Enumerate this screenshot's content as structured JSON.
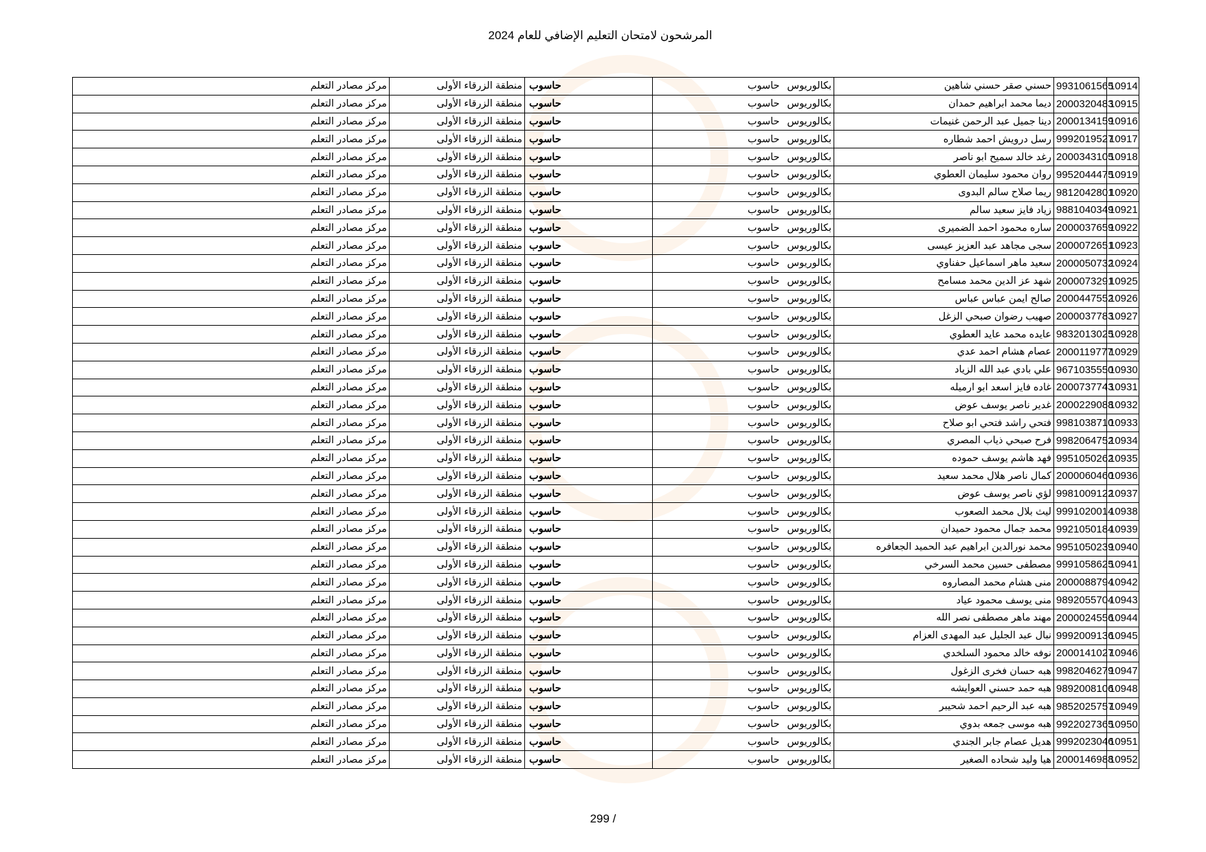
{
  "title": "المرشحون لامتحان التعليم الإضافي للعام 2024",
  "page_label": "299 /",
  "rows": [
    {
      "no": "10914",
      "id": "9931061565",
      "name": "حسني صقر حسني شاهين",
      "degree": "بكالوريوس",
      "spec": "حاسوب",
      "subject": "حاسوب",
      "region": "منطقة الزرقاء الأولى",
      "center": "مركز مصادر التعلم"
    },
    {
      "no": "10915",
      "id": "2000320483",
      "name": "ديما محمد ابراهيم حمدان",
      "degree": "بكالوريوس",
      "spec": "حاسوب",
      "subject": "حاسوب",
      "region": "منطقة الزرقاء الأولى",
      "center": "مركز مصادر التعلم"
    },
    {
      "no": "10916",
      "id": "2000134159",
      "name": "دينا جميل عبد الرحمن غنيمات",
      "degree": "بكالوريوس",
      "spec": "حاسوب",
      "subject": "حاسوب",
      "region": "منطقة الزرقاء الأولى",
      "center": "مركز مصادر التعلم"
    },
    {
      "no": "10917",
      "id": "9992019527",
      "name": "رسل درويش احمد شطاره",
      "degree": "بكالوريوس",
      "spec": "حاسوب",
      "subject": "حاسوب",
      "region": "منطقة الزرقاء الأولى",
      "center": "مركز مصادر التعلم"
    },
    {
      "no": "10918",
      "id": "2000343105",
      "name": "رغد خالد سميح ابو ناصر",
      "degree": "بكالوريوس",
      "spec": "حاسوب",
      "subject": "حاسوب",
      "region": "منطقة الزرقاء الأولى",
      "center": "مركز مصادر التعلم"
    },
    {
      "no": "10919",
      "id": "9952044475",
      "name": "روان محمود سليمان العطوي",
      "degree": "بكالوريوس",
      "spec": "حاسوب",
      "subject": "حاسوب",
      "region": "منطقة الزرقاء الأولى",
      "center": "مركز مصادر التعلم"
    },
    {
      "no": "10920",
      "id": "9812042801",
      "name": "ريما صلاح سالم البدوى",
      "degree": "بكالوريوس",
      "spec": "حاسوب",
      "subject": "حاسوب",
      "region": "منطقة الزرقاء الأولى",
      "center": "مركز مصادر التعلم"
    },
    {
      "no": "10921",
      "id": "9881040349",
      "name": "زياد فايز سعيد سالم",
      "degree": "بكالوريوس",
      "spec": "حاسوب",
      "subject": "حاسوب",
      "region": "منطقة الزرقاء الأولى",
      "center": "مركز مصادر التعلم"
    },
    {
      "no": "10922",
      "id": "2000037659",
      "name": "ساره محمود احمد الضميرى",
      "degree": "بكالوريوس",
      "spec": "حاسوب",
      "subject": "حاسوب",
      "region": "منطقة الزرقاء الأولى",
      "center": "مركز مصادر التعلم"
    },
    {
      "no": "10923",
      "id": "2000072651",
      "name": "سجى مجاهد عبد العزيز عيسى",
      "degree": "بكالوريوس",
      "spec": "حاسوب",
      "subject": "حاسوب",
      "region": "منطقة الزرقاء الأولى",
      "center": "مركز مصادر التعلم"
    },
    {
      "no": "10924",
      "id": "2000050732",
      "name": "سعيد ماهر اسماعيل حفناوي",
      "degree": "بكالوريوس",
      "spec": "حاسوب",
      "subject": "حاسوب",
      "region": "منطقة الزرقاء الأولى",
      "center": "مركز مصادر التعلم"
    },
    {
      "no": "10925",
      "id": "2000073291",
      "name": "شهد عز الدين محمد مسامح",
      "degree": "بكالوريوس",
      "spec": "حاسوب",
      "subject": "حاسوب",
      "region": "منطقة الزرقاء الأولى",
      "center": "مركز مصادر التعلم"
    },
    {
      "no": "10926",
      "id": "2000447552",
      "name": "صالح ايمن عباس عباس",
      "degree": "بكالوريوس",
      "spec": "حاسوب",
      "subject": "حاسوب",
      "region": "منطقة الزرقاء الأولى",
      "center": "مركز مصادر التعلم"
    },
    {
      "no": "10927",
      "id": "2000037783",
      "name": "صهيب رضوان صبحي الزغل",
      "degree": "بكالوريوس",
      "spec": "حاسوب",
      "subject": "حاسوب",
      "region": "منطقة الزرقاء الأولى",
      "center": "مركز مصادر التعلم"
    },
    {
      "no": "10928",
      "id": "9832013025",
      "name": "عايده محمد عايد العطوي",
      "degree": "بكالوريوس",
      "spec": "حاسوب",
      "subject": "حاسوب",
      "region": "منطقة الزرقاء الأولى",
      "center": "مركز مصادر التعلم"
    },
    {
      "no": "10929",
      "id": "2000119777",
      "name": "عصام هشام احمد عدي",
      "degree": "بكالوريوس",
      "spec": "حاسوب",
      "subject": "حاسوب",
      "region": "منطقة الزرقاء الأولى",
      "center": "مركز مصادر التعلم"
    },
    {
      "no": "10930",
      "id": "9671035550",
      "name": "علي بادي عبد الله الزياد",
      "degree": "بكالوريوس",
      "spec": "حاسوب",
      "subject": "حاسوب",
      "region": "منطقة الزرقاء الأولى",
      "center": "مركز مصادر التعلم"
    },
    {
      "no": "10931",
      "id": "2000737743",
      "name": "غاده فايز اسعد ابو ارميله",
      "degree": "بكالوريوس",
      "spec": "حاسوب",
      "subject": "حاسوب",
      "region": "منطقة الزرقاء الأولى",
      "center": "مركز مصادر التعلم"
    },
    {
      "no": "10932",
      "id": "2000229088",
      "name": "غدير ناصر يوسف عوض",
      "degree": "بكالوريوس",
      "spec": "حاسوب",
      "subject": "حاسوب",
      "region": "منطقة الزرقاء الأولى",
      "center": "مركز مصادر التعلم"
    },
    {
      "no": "10933",
      "id": "9981038710",
      "name": "فتحي راشد فتحي ابو صلاح",
      "degree": "بكالوريوس",
      "spec": "حاسوب",
      "subject": "حاسوب",
      "region": "منطقة الزرقاء الأولى",
      "center": "مركز مصادر التعلم"
    },
    {
      "no": "10934",
      "id": "9982064752",
      "name": "فرح صبحي ذياب المصري",
      "degree": "بكالوريوس",
      "spec": "حاسوب",
      "subject": "حاسوب",
      "region": "منطقة الزرقاء الأولى",
      "center": "مركز مصادر التعلم"
    },
    {
      "no": "10935",
      "id": "9951050262",
      "name": "فهد هاشم يوسف حموده",
      "degree": "بكالوريوس",
      "spec": "حاسوب",
      "subject": "حاسوب",
      "region": "منطقة الزرقاء الأولى",
      "center": "مركز مصادر التعلم"
    },
    {
      "no": "10936",
      "id": "2000060460",
      "name": "كمال ناصر هلال محمد سعيد",
      "degree": "بكالوريوس",
      "spec": "حاسوب",
      "subject": "حاسوب",
      "region": "منطقة الزرقاء الأولى",
      "center": "مركز مصادر التعلم"
    },
    {
      "no": "10937",
      "id": "9981009122",
      "name": "لؤي ناصر يوسف عوض",
      "degree": "بكالوريوس",
      "spec": "حاسوب",
      "subject": "حاسوب",
      "region": "منطقة الزرقاء الأولى",
      "center": "مركز مصادر التعلم"
    },
    {
      "no": "10938",
      "id": "9991020014",
      "name": "ليث بلال محمد الصعوب",
      "degree": "بكالوريوس",
      "spec": "حاسوب",
      "subject": "حاسوب",
      "region": "منطقة الزرقاء الأولى",
      "center": "مركز مصادر التعلم"
    },
    {
      "no": "10939",
      "id": "9921050184",
      "name": "محمد جمال محمود حميدان",
      "degree": "بكالوريوس",
      "spec": "حاسوب",
      "subject": "حاسوب",
      "region": "منطقة الزرقاء الأولى",
      "center": "مركز مصادر التعلم"
    },
    {
      "no": "10940",
      "id": "9951050239",
      "name": "محمد نورالدين ابراهيم عبد الحميد الجعافره",
      "degree": "بكالوريوس",
      "spec": "حاسوب",
      "subject": "حاسوب",
      "region": "منطقة الزرقاء الأولى",
      "center": "مركز مصادر التعلم"
    },
    {
      "no": "10941",
      "id": "9991058625",
      "name": "مصطفى حسين محمد السرخي",
      "degree": "بكالوريوس",
      "spec": "حاسوب",
      "subject": "حاسوب",
      "region": "منطقة الزرقاء الأولى",
      "center": "مركز مصادر التعلم"
    },
    {
      "no": "10942",
      "id": "2000088794",
      "name": "منى هشام محمد المصاروه",
      "degree": "بكالوريوس",
      "spec": "حاسوب",
      "subject": "حاسوب",
      "region": "منطقة الزرقاء الأولى",
      "center": "مركز مصادر التعلم"
    },
    {
      "no": "10943",
      "id": "9892055704",
      "name": "منى يوسف محمود عياد",
      "degree": "بكالوريوس",
      "spec": "حاسوب",
      "subject": "حاسوب",
      "region": "منطقة الزرقاء الأولى",
      "center": "مركز مصادر التعلم"
    },
    {
      "no": "10944",
      "id": "2000024556",
      "name": "مهند ماهر مصطفى نصر الله",
      "degree": "بكالوريوس",
      "spec": "حاسوب",
      "subject": "حاسوب",
      "region": "منطقة الزرقاء الأولى",
      "center": "مركز مصادر التعلم"
    },
    {
      "no": "10945",
      "id": "9992009136",
      "name": "نبال عبد الجليل عبد المهدى العزام",
      "degree": "بكالوريوس",
      "spec": "حاسوب",
      "subject": "حاسوب",
      "region": "منطقة الزرقاء الأولى",
      "center": "مركز مصادر التعلم"
    },
    {
      "no": "10946",
      "id": "2000141027",
      "name": "نوفه خالد محمود السلخدي",
      "degree": "بكالوريوس",
      "spec": "حاسوب",
      "subject": "حاسوب",
      "region": "منطقة الزرقاء الأولى",
      "center": "مركز مصادر التعلم"
    },
    {
      "no": "10947",
      "id": "9982046279",
      "name": "هبه حسان فخرى الزغول",
      "degree": "بكالوريوس",
      "spec": "حاسوب",
      "subject": "حاسوب",
      "region": "منطقة الزرقاء الأولى",
      "center": "مركز مصادر التعلم"
    },
    {
      "no": "10948",
      "id": "9892008106",
      "name": "هبه حمد حسني العوايشه",
      "degree": "بكالوريوس",
      "spec": "حاسوب",
      "subject": "حاسوب",
      "region": "منطقة الزرقاء الأولى",
      "center": "مركز مصادر التعلم"
    },
    {
      "no": "10949",
      "id": "9852025757",
      "name": "هبه عبد الرحيم احمد شحيبر",
      "degree": "بكالوريوس",
      "spec": "حاسوب",
      "subject": "حاسوب",
      "region": "منطقة الزرقاء الأولى",
      "center": "مركز مصادر التعلم"
    },
    {
      "no": "10950",
      "id": "9922027365",
      "name": "هبه موسى جمعه بدوي",
      "degree": "بكالوريوس",
      "spec": "حاسوب",
      "subject": "حاسوب",
      "region": "منطقة الزرقاء الأولى",
      "center": "مركز مصادر التعلم"
    },
    {
      "no": "10951",
      "id": "9992023046",
      "name": "هديل عصام جابر الجندي",
      "degree": "بكالوريوس",
      "spec": "حاسوب",
      "subject": "حاسوب",
      "region": "منطقة الزرقاء الأولى",
      "center": "مركز مصادر التعلم"
    },
    {
      "no": "10952",
      "id": "2000146988",
      "name": "هيا وليد شحاده الصغير",
      "degree": "بكالوريوس",
      "spec": "حاسوب",
      "subject": "حاسوب",
      "region": "منطقة الزرقاء الأولى",
      "center": "مركز مصادر التعلم"
    }
  ]
}
